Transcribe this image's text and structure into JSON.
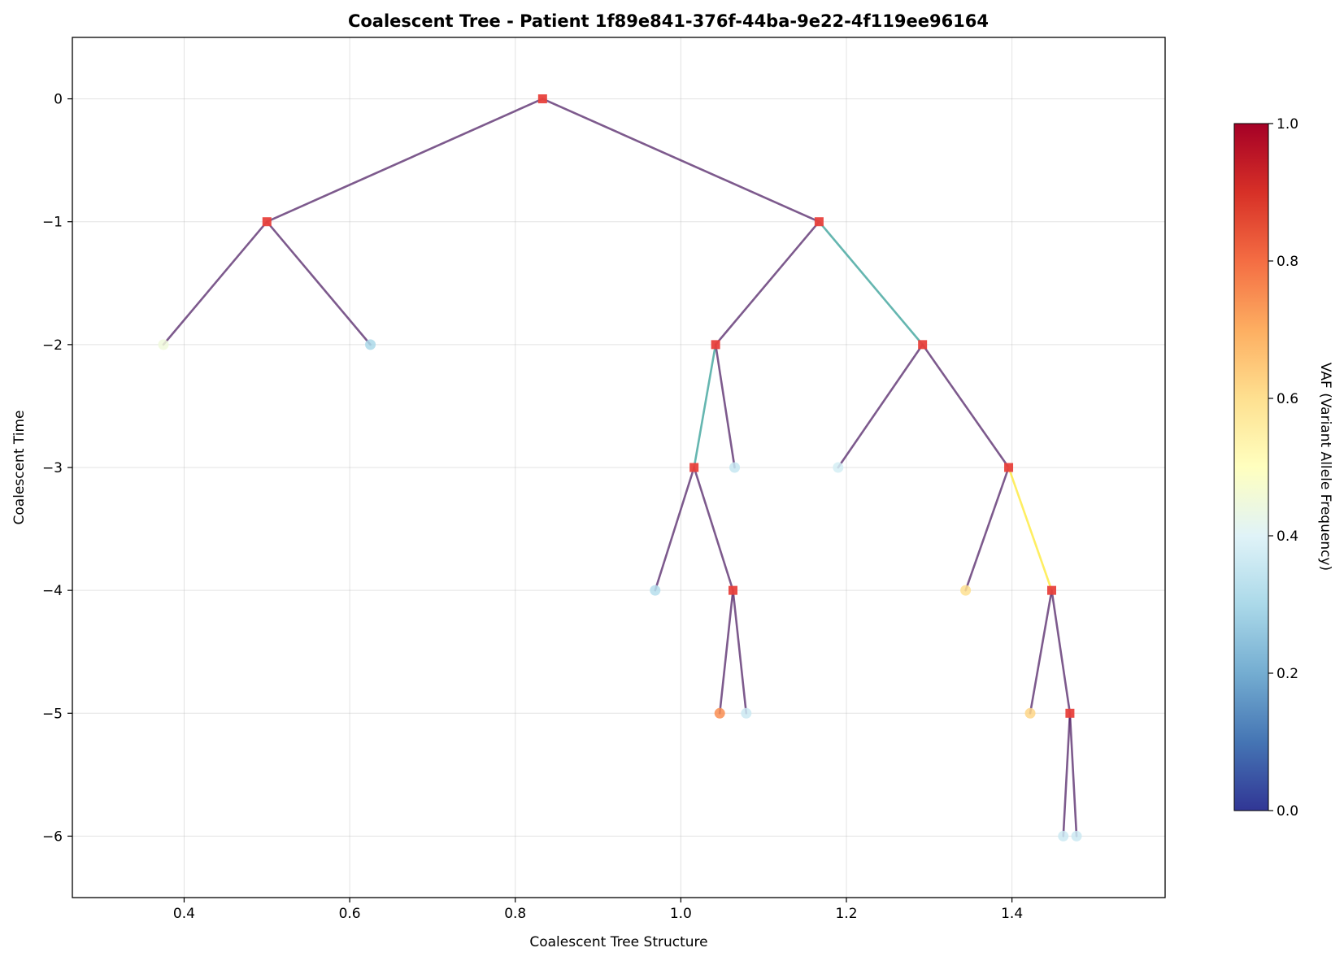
{
  "chart_data": {
    "type": "scatter",
    "title": "Coalescent Tree - Patient 1f89e841-376f-44ba-9e22-4f119ee96164",
    "xlabel": "Coalescent Tree Structure",
    "ylabel": "Coalescent Time",
    "xlim": [
      0.265,
      1.585
    ],
    "ylim": [
      -6.5,
      0.5
    ],
    "x_ticks": [
      0.4,
      0.6,
      0.8,
      1.0,
      1.2,
      1.4
    ],
    "x_tick_labels": [
      "0.4",
      "0.6",
      "0.8",
      "1.0",
      "1.2",
      "1.4"
    ],
    "y_ticks": [
      0,
      -1,
      -2,
      -3,
      -4,
      -5,
      -6
    ],
    "y_tick_labels": [
      "0",
      "−1",
      "−2",
      "−3",
      "−4",
      "−5",
      "−6"
    ],
    "grid": true,
    "colorbar": {
      "label": "VAF (Variant Allele Frequency)",
      "range": [
        0,
        1
      ],
      "ticks": [
        0.0,
        0.2,
        0.4,
        0.6,
        0.8,
        1.0
      ],
      "tick_labels": [
        "0.0",
        "0.2",
        "0.4",
        "0.6",
        "0.8",
        "1.0"
      ],
      "colormap": "RdYlBu_r"
    },
    "internal_node_color": "#e8413c",
    "nodes": [
      {
        "id": "root",
        "x": 0.833,
        "y": 0,
        "type": "internal"
      },
      {
        "id": "n1",
        "x": 0.5,
        "y": -1,
        "type": "internal"
      },
      {
        "id": "n2",
        "x": 1.167,
        "y": -1,
        "type": "internal"
      },
      {
        "id": "l1",
        "x": 0.375,
        "y": -2,
        "type": "leaf",
        "vaf": 0.45
      },
      {
        "id": "l2",
        "x": 0.625,
        "y": -2,
        "type": "leaf",
        "vaf": 0.3
      },
      {
        "id": "n3",
        "x": 1.042,
        "y": -2,
        "type": "internal"
      },
      {
        "id": "n4",
        "x": 1.292,
        "y": -2,
        "type": "internal"
      },
      {
        "id": "n5",
        "x": 1.016,
        "y": -3,
        "type": "internal"
      },
      {
        "id": "l3",
        "x": 1.065,
        "y": -3,
        "type": "leaf",
        "vaf": 0.35
      },
      {
        "id": "l4",
        "x": 1.19,
        "y": -3,
        "type": "leaf",
        "vaf": 0.38
      },
      {
        "id": "n6",
        "x": 1.396,
        "y": -3,
        "type": "internal"
      },
      {
        "id": "l5",
        "x": 0.969,
        "y": -4,
        "type": "leaf",
        "vaf": 0.32
      },
      {
        "id": "n7",
        "x": 1.063,
        "y": -4,
        "type": "internal"
      },
      {
        "id": "l6",
        "x": 1.344,
        "y": -4,
        "type": "leaf",
        "vaf": 0.6
      },
      {
        "id": "n8",
        "x": 1.448,
        "y": -4,
        "type": "internal"
      },
      {
        "id": "l7",
        "x": 1.047,
        "y": -5,
        "type": "leaf",
        "vaf": 0.75
      },
      {
        "id": "l8",
        "x": 1.079,
        "y": -5,
        "type": "leaf",
        "vaf": 0.36
      },
      {
        "id": "l9",
        "x": 1.422,
        "y": -5,
        "type": "leaf",
        "vaf": 0.62
      },
      {
        "id": "n9",
        "x": 1.47,
        "y": -5,
        "type": "internal"
      },
      {
        "id": "l10",
        "x": 1.462,
        "y": -6,
        "type": "leaf",
        "vaf": 0.36
      },
      {
        "id": "l11",
        "x": 1.478,
        "y": -6,
        "type": "leaf",
        "vaf": 0.36
      }
    ],
    "edges": [
      {
        "from": "root",
        "to": "n1",
        "color": "#4b1a61"
      },
      {
        "from": "root",
        "to": "n2",
        "color": "#4b1a61"
      },
      {
        "from": "n1",
        "to": "l1",
        "color": "#4b1a61"
      },
      {
        "from": "n1",
        "to": "l2",
        "color": "#4b1a61"
      },
      {
        "from": "n2",
        "to": "n3",
        "color": "#4b1a61"
      },
      {
        "from": "n2",
        "to": "n4",
        "color": "#2a9a92"
      },
      {
        "from": "n3",
        "to": "n5",
        "color": "#2a9a92"
      },
      {
        "from": "n3",
        "to": "l3",
        "color": "#4b1a61"
      },
      {
        "from": "n4",
        "to": "l4",
        "color": "#4b1a61"
      },
      {
        "from": "n4",
        "to": "n6",
        "color": "#4b1a61"
      },
      {
        "from": "n5",
        "to": "l5",
        "color": "#4b1a61"
      },
      {
        "from": "n5",
        "to": "n7",
        "color": "#4b1a61"
      },
      {
        "from": "n6",
        "to": "l6",
        "color": "#4b1a61"
      },
      {
        "from": "n6",
        "to": "n8",
        "color": "#fde725"
      },
      {
        "from": "n7",
        "to": "l7",
        "color": "#4b1a61"
      },
      {
        "from": "n7",
        "to": "l8",
        "color": "#4b1a61"
      },
      {
        "from": "n8",
        "to": "l9",
        "color": "#4b1a61"
      },
      {
        "from": "n8",
        "to": "n9",
        "color": "#4b1a61"
      },
      {
        "from": "n9",
        "to": "l10",
        "color": "#4b1a61"
      },
      {
        "from": "n9",
        "to": "l11",
        "color": "#4b1a61"
      }
    ]
  }
}
